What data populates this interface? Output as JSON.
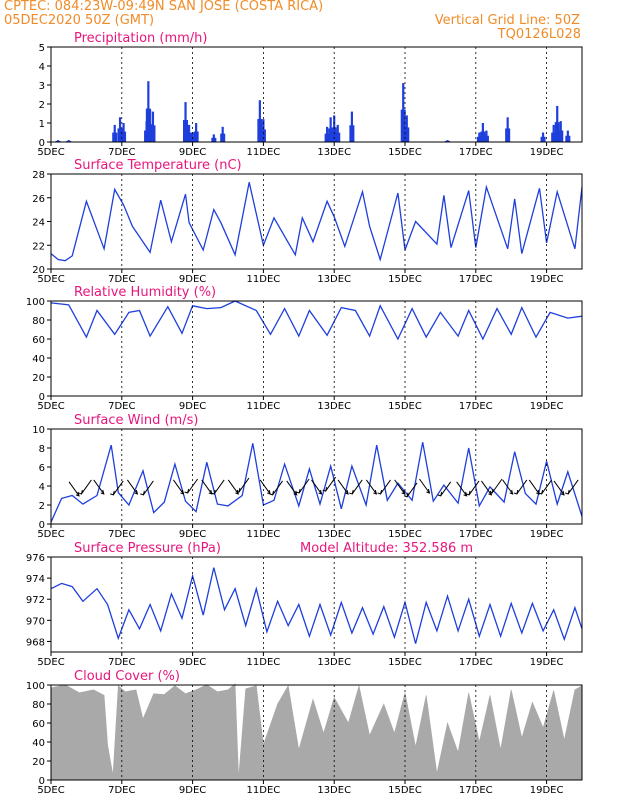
{
  "header": {
    "line1": "CPTEC:   084:23W-09:49N  SAN JOSE (COSTA RICA)",
    "date": "05DEC2020 50Z (GMT)",
    "grid_note": "Vertical Grid Line: 50Z",
    "code": "TQ0126L028"
  },
  "colors": {
    "header": "#f08c28",
    "title": "#e8167c",
    "line": "#1f3fdc",
    "cloud": "#a9a9a9"
  },
  "chart_data": [
    {
      "type": "bar",
      "title": "Precipitation  (mm/h)",
      "ylim": [
        0,
        5
      ],
      "yticks": [
        0,
        1,
        2,
        3,
        4,
        5
      ],
      "x_ticks": [
        "5DEC",
        "7DEC",
        "9DEC",
        "11DEC",
        "13DEC",
        "15DEC",
        "17DEC",
        "19DEC"
      ],
      "x_unit": "days since 5DEC",
      "peaks": [
        [
          0.2,
          0.1
        ],
        [
          0.5,
          0.1
        ],
        [
          1.8,
          0.9
        ],
        [
          1.95,
          1.3
        ],
        [
          2.05,
          1.0
        ],
        [
          2.7,
          1.1
        ],
        [
          2.75,
          3.2
        ],
        [
          2.8,
          1.7
        ],
        [
          2.88,
          1.6
        ],
        [
          3.8,
          2.1
        ],
        [
          3.9,
          0.9
        ],
        [
          4.0,
          0.5
        ],
        [
          4.1,
          1.0
        ],
        [
          4.6,
          0.4
        ],
        [
          4.85,
          0.8
        ],
        [
          5.9,
          2.2
        ],
        [
          6.0,
          1.2
        ],
        [
          7.8,
          0.8
        ],
        [
          7.9,
          1.3
        ],
        [
          8.0,
          1.4
        ],
        [
          8.1,
          0.9
        ],
        [
          8.5,
          1.6
        ],
        [
          9.95,
          3.1
        ],
        [
          10.05,
          1.4
        ],
        [
          11.2,
          0.1
        ],
        [
          12.1,
          0.5
        ],
        [
          12.2,
          1.0
        ],
        [
          12.3,
          0.6
        ],
        [
          12.9,
          1.3
        ],
        [
          13.9,
          0.5
        ],
        [
          14.2,
          0.9
        ],
        [
          14.3,
          1.9
        ],
        [
          14.4,
          1.1
        ],
        [
          14.6,
          0.6
        ]
      ]
    },
    {
      "type": "line",
      "title": "Surface Temperature (nC)",
      "ylim": [
        20,
        28
      ],
      "yticks": [
        20,
        22,
        24,
        26,
        28
      ],
      "x_ticks": [
        "5DEC",
        "7DEC",
        "9DEC",
        "11DEC",
        "13DEC",
        "15DEC",
        "17DEC",
        "19DEC"
      ],
      "x_unit": "days since 5DEC",
      "x": [
        0,
        0.2,
        0.4,
        0.6,
        1.0,
        1.5,
        1.8,
        2.05,
        2.3,
        2.8,
        3.1,
        3.4,
        3.8,
        3.9,
        4.3,
        4.6,
        4.8,
        5.2,
        5.6,
        6.0,
        6.3,
        6.9,
        7.1,
        7.4,
        7.8,
        8.0,
        8.3,
        8.8,
        9.0,
        9.3,
        9.8,
        10.0,
        10.3,
        10.9,
        11.1,
        11.3,
        11.8,
        12.0,
        12.3,
        12.9,
        13.1,
        13.3,
        13.8,
        14.0,
        14.3,
        14.8,
        15.0
      ],
      "y": [
        21.3,
        20.8,
        20.7,
        21.1,
        25.7,
        21.7,
        26.7,
        25.4,
        23.6,
        21.4,
        25.8,
        22.3,
        26.3,
        23.9,
        21.6,
        25.0,
        23.9,
        21.2,
        27.3,
        22.0,
        24.3,
        21.2,
        24.3,
        22.3,
        25.7,
        24.4,
        21.9,
        26.5,
        23.6,
        20.8,
        26.4,
        21.6,
        24.0,
        22.1,
        26.2,
        21.8,
        26.6,
        21.8,
        26.9,
        21.7,
        25.9,
        21.3,
        26.8,
        22.2,
        26.5,
        21.7,
        26.9
      ]
    },
    {
      "type": "line",
      "title": "Relative Humidity  (%)",
      "ylim": [
        0,
        100
      ],
      "yticks": [
        0,
        20,
        40,
        60,
        80,
        100
      ],
      "x_ticks": [
        "5DEC",
        "7DEC",
        "9DEC",
        "11DEC",
        "13DEC",
        "15DEC",
        "17DEC",
        "19DEC"
      ],
      "x_unit": "days since 5DEC",
      "x": [
        0,
        0.5,
        1.0,
        1.3,
        1.8,
        2.2,
        2.5,
        2.8,
        3.3,
        3.7,
        4.0,
        4.4,
        4.8,
        5.2,
        5.8,
        6.2,
        6.6,
        7.0,
        7.3,
        7.8,
        8.2,
        8.6,
        9.0,
        9.3,
        9.8,
        10.2,
        10.6,
        11.0,
        11.5,
        11.8,
        12.2,
        12.6,
        13.0,
        13.3,
        13.7,
        14.1,
        14.6,
        15.0
      ],
      "y": [
        98,
        96,
        62,
        90,
        65,
        88,
        90,
        63,
        94,
        66,
        95,
        92,
        93,
        100,
        90,
        65,
        92,
        63,
        90,
        64,
        93,
        90,
        63,
        95,
        60,
        92,
        62,
        88,
        63,
        90,
        60,
        92,
        65,
        93,
        62,
        88,
        82,
        84
      ]
    },
    {
      "type": "line",
      "title": "Surface Wind  (m/s)",
      "ylim": [
        0,
        10
      ],
      "yticks": [
        0,
        2,
        4,
        6,
        8,
        10
      ],
      "x_ticks": [
        "5DEC",
        "7DEC",
        "9DEC",
        "11DEC",
        "13DEC",
        "15DEC",
        "17DEC",
        "19DEC"
      ],
      "x_unit": "days since 5DEC",
      "x": [
        0,
        0.3,
        0.6,
        0.9,
        1.3,
        1.7,
        1.9,
        2.2,
        2.6,
        2.9,
        3.2,
        3.5,
        3.8,
        4.1,
        4.4,
        4.7,
        5.0,
        5.4,
        5.7,
        6.0,
        6.3,
        6.6,
        7.0,
        7.3,
        7.6,
        7.9,
        8.2,
        8.5,
        8.9,
        9.2,
        9.5,
        9.8,
        10.2,
        10.5,
        10.8,
        11.1,
        11.5,
        11.8,
        12.1,
        12.4,
        12.8,
        13.1,
        13.4,
        13.7,
        14.0,
        14.3,
        14.6,
        15.0
      ],
      "y": [
        0.2,
        2.7,
        3.0,
        2.1,
        3.0,
        8.3,
        3.3,
        2.0,
        5.6,
        1.2,
        2.3,
        6.3,
        2.4,
        1.3,
        6.5,
        2.1,
        1.9,
        3.0,
        8.5,
        2.0,
        2.5,
        6.3,
        1.9,
        5.8,
        2.1,
        6.1,
        1.6,
        6.1,
        2.0,
        8.3,
        2.5,
        4.3,
        2.5,
        8.6,
        2.4,
        4.1,
        2.2,
        8.0,
        1.9,
        3.9,
        2.3,
        7.6,
        3.2,
        2.1,
        6.6,
        2.1,
        5.5,
        0.8
      ],
      "arrows_x": [
        0.65,
        1.0,
        1.35,
        1.9,
        2.3,
        2.75,
        3.6,
        4.0,
        4.4,
        4.75,
        5.15,
        5.45,
        6.05,
        6.4,
        6.8,
        7.15,
        7.5,
        7.9,
        8.25,
        8.65,
        9.05,
        9.45,
        9.85,
        10.2,
        10.55,
        11.15,
        11.6,
        11.95,
        12.3,
        12.6,
        12.9,
        13.3,
        13.65,
        14.0,
        14.35,
        14.75
      ],
      "arrows_y": [
        3.7,
        3.9,
        3.9,
        3.8,
        3.9,
        3.8,
        3.9,
        4.0,
        3.9,
        3.9,
        3.9,
        4.1,
        3.9,
        3.8,
        3.8,
        4.0,
        3.9,
        4.2,
        3.9,
        3.9,
        3.9,
        3.9,
        3.9,
        3.6,
        4.0,
        3.7,
        3.7,
        3.8,
        3.8,
        4.0,
        3.9,
        3.9,
        3.9,
        3.9,
        3.8,
        3.9
      ]
    },
    {
      "type": "line",
      "title": "Surface Pressure  (hPa)",
      "annotation": "Model Altitude: 352.586  m",
      "ylim": [
        967,
        976
      ],
      "yticks": [
        968,
        970,
        972,
        974,
        976
      ],
      "x_ticks": [
        "5DEC",
        "7DEC",
        "9DEC",
        "11DEC",
        "13DEC",
        "15DEC",
        "17DEC",
        "19DEC"
      ],
      "x_unit": "days since 5DEC",
      "x": [
        0,
        0.3,
        0.6,
        0.9,
        1.3,
        1.6,
        1.9,
        2.2,
        2.5,
        2.8,
        3.1,
        3.4,
        3.7,
        4.0,
        4.3,
        4.6,
        4.9,
        5.2,
        5.5,
        5.8,
        6.1,
        6.4,
        6.7,
        7.0,
        7.3,
        7.6,
        7.9,
        8.2,
        8.5,
        8.8,
        9.1,
        9.4,
        9.7,
        10.0,
        10.3,
        10.6,
        10.9,
        11.2,
        11.5,
        11.8,
        12.1,
        12.4,
        12.7,
        13.0,
        13.3,
        13.6,
        13.9,
        14.2,
        14.5,
        14.8,
        15.0
      ],
      "y": [
        973,
        973.5,
        973.2,
        971.8,
        973.0,
        971.5,
        968.3,
        971.0,
        969.2,
        971.5,
        969.0,
        972.5,
        970.2,
        974.2,
        970.5,
        975.0,
        971.0,
        973.0,
        969.5,
        973.0,
        968.9,
        971.8,
        969.5,
        971.5,
        968.5,
        971.5,
        968.6,
        971.7,
        968.8,
        971.2,
        968.7,
        971.3,
        968.4,
        971.7,
        967.8,
        971.7,
        969.0,
        972.3,
        969.0,
        972.0,
        968.5,
        971.5,
        968.5,
        971.6,
        968.8,
        971.6,
        969.0,
        971.0,
        968.2,
        971.2,
        969.2
      ]
    },
    {
      "type": "area",
      "title": "Cloud Cover  (%)",
      "ylim": [
        0,
        100
      ],
      "yticks": [
        0,
        20,
        40,
        60,
        80,
        100
      ],
      "x_ticks": [
        "5DEC",
        "7DEC",
        "9DEC",
        "11DEC",
        "13DEC",
        "15DEC",
        "17DEC",
        "19DEC"
      ],
      "x_unit": "days since 5DEC",
      "x": [
        0,
        0.4,
        0.8,
        1.2,
        1.5,
        1.6,
        1.75,
        1.9,
        2.1,
        2.4,
        2.6,
        2.9,
        3.2,
        3.5,
        3.8,
        4.1,
        4.4,
        4.7,
        5.0,
        5.2,
        5.3,
        5.5,
        5.8,
        6.0,
        6.4,
        6.7,
        7.0,
        7.4,
        7.7,
        8.0,
        8.4,
        8.7,
        9.0,
        9.4,
        9.7,
        10.0,
        10.3,
        10.6,
        10.9,
        11.2,
        11.5,
        11.8,
        12.1,
        12.4,
        12.7,
        13.0,
        13.3,
        13.6,
        13.9,
        14.2,
        14.5,
        14.8,
        15.0
      ],
      "y": [
        97,
        96,
        95,
        95,
        85,
        40,
        5,
        95,
        96,
        95,
        60,
        94,
        90,
        95,
        94,
        95,
        96,
        96,
        95,
        97,
        5,
        96,
        95,
        40,
        80,
        95,
        35,
        85,
        45,
        90,
        60,
        95,
        50,
        80,
        45,
        95,
        35,
        85,
        10,
        60,
        25,
        95,
        40,
        85,
        35,
        95,
        40,
        85,
        55,
        90,
        45,
        95,
        95
      ]
    }
  ]
}
